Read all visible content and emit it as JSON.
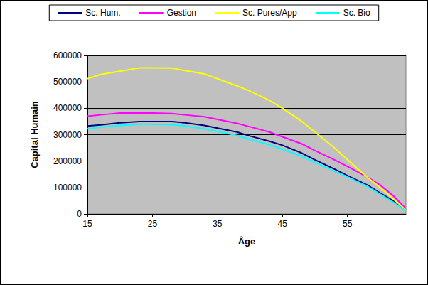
{
  "chart_data": {
    "type": "line",
    "x_label": "Âge",
    "y_label": "Capital Humain",
    "x": [
      15,
      17,
      20,
      23,
      25,
      28,
      30,
      33,
      35,
      38,
      40,
      43,
      45,
      48,
      50,
      53,
      55,
      58,
      60,
      62,
      64
    ],
    "series": [
      {
        "name": "Sc. Hum.",
        "color": "#000080",
        "values": [
          333000,
          337000,
          345000,
          350000,
          350000,
          350000,
          345000,
          335000,
          325000,
          310000,
          295000,
          275000,
          260000,
          230000,
          205000,
          170000,
          145000,
          110000,
          80000,
          50000,
          15000
        ]
      },
      {
        "name": "Gestion",
        "color": "#ff00ff",
        "values": [
          370000,
          375000,
          382000,
          382000,
          382000,
          380000,
          375000,
          368000,
          358000,
          343000,
          330000,
          310000,
          292000,
          265000,
          240000,
          205000,
          180000,
          140000,
          110000,
          70000,
          20000
        ]
      },
      {
        "name": "Sc. Pures/App",
        "color": "#ffff00",
        "values": [
          512000,
          528000,
          540000,
          553000,
          553000,
          552000,
          543000,
          530000,
          512000,
          485000,
          465000,
          430000,
          400000,
          350000,
          310000,
          250000,
          205000,
          140000,
          100000,
          58000,
          15000
        ]
      },
      {
        "name": "Sc. Bio",
        "color": "#00ffff",
        "values": [
          322000,
          328000,
          335000,
          340000,
          340000,
          338000,
          333000,
          322000,
          312000,
          297000,
          282000,
          262000,
          245000,
          218000,
          195000,
          162000,
          140000,
          105000,
          75000,
          45000,
          12000
        ]
      }
    ],
    "xlim": [
      15,
      64
    ],
    "xticks": [
      15,
      25,
      35,
      45,
      55
    ],
    "ylim": [
      0,
      600000
    ],
    "yticks": [
      0,
      100000,
      200000,
      300000,
      400000,
      500000,
      600000
    ],
    "grid": true,
    "legend": "top"
  }
}
